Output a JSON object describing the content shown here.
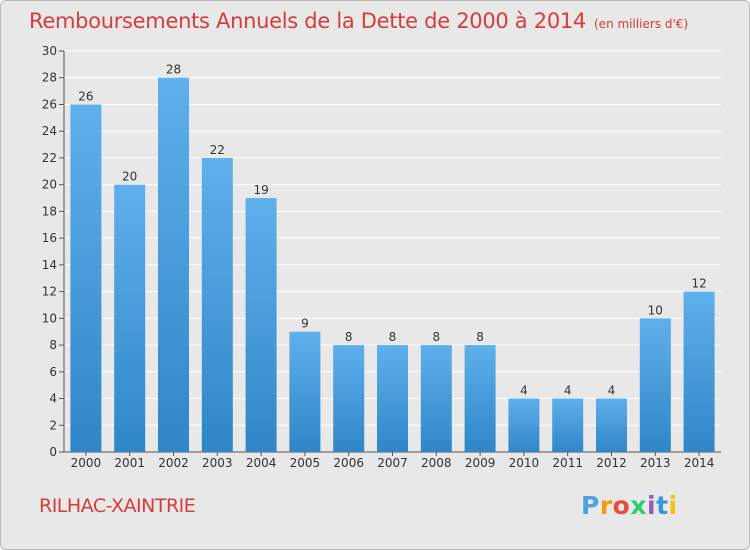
{
  "title": "Remboursements Annuels de la Dette de 2000 à 2014",
  "subtitle": "(en milliers d'€)",
  "commune": "RILHAC-XAINTRIE",
  "logo": {
    "letters": [
      "P",
      "r",
      "o",
      "x",
      "i",
      "t",
      "i"
    ],
    "colors": [
      "#4aa3df",
      "#f39c12",
      "#e74c3c",
      "#2ecc71",
      "#9b59b6",
      "#3498db",
      "#f1c40f"
    ]
  },
  "colors": {
    "bar_light": "#5fb0ec",
    "bar_dark": "#2f86c8",
    "accent": "#d63c3c"
  },
  "chart_data": {
    "type": "bar",
    "title": "Remboursements Annuels de la Dette de 2000 à 2014",
    "xlabel": "",
    "ylabel": "",
    "categories": [
      "2000",
      "2001",
      "2002",
      "2003",
      "2004",
      "2005",
      "2006",
      "2007",
      "2008",
      "2009",
      "2010",
      "2011",
      "2012",
      "2013",
      "2014"
    ],
    "values": [
      26,
      20,
      28,
      22,
      19,
      9,
      8,
      8,
      8,
      8,
      4,
      4,
      4,
      10,
      12
    ],
    "ylim": [
      0,
      30
    ],
    "yticks": [
      0,
      2,
      4,
      6,
      8,
      10,
      12,
      14,
      16,
      18,
      20,
      22,
      24,
      26,
      28,
      30
    ],
    "grid": true
  }
}
